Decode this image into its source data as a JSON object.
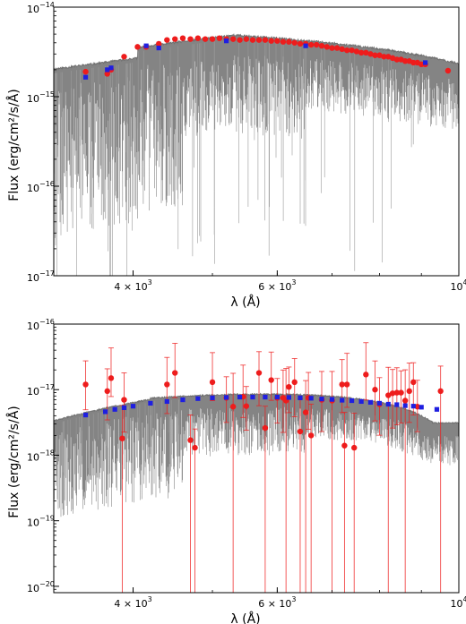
{
  "chart_data": [
    {
      "type": "line",
      "xlabel": "λ (Å)",
      "ylabel": "Flux (erg/cm²/s/Å)",
      "xscale": "log",
      "yscale": "log",
      "xlim": [
        3200,
        10000
      ],
      "ylim": [
        1e-17,
        1e-14
      ],
      "xticks": [
        {
          "value": 4000,
          "label": "4 × 10",
          "exp": "3"
        },
        {
          "value": 6000,
          "label": "6 × 10",
          "exp": "3"
        },
        {
          "value": 10000,
          "label": "10",
          "exp": "4"
        }
      ],
      "yticks": [
        {
          "value": 1e-17,
          "label": "10",
          "exp": "−17"
        },
        {
          "value": 1e-16,
          "label": "10",
          "exp": "−16"
        },
        {
          "value": 1e-15,
          "label": "10",
          "exp": "−15"
        },
        {
          "value": 1e-14,
          "label": "10",
          "exp": "−14"
        }
      ],
      "model_spectrum": {
        "color": "#6e6e6e"
      },
      "series": [
        {
          "color": "#ee1c1c",
          "marker": "circle",
          "x": [
            3500,
            3720,
            3760,
            3900,
            4050,
            4150,
            4300,
            4400,
            4500,
            4600,
            4700,
            4800,
            4900,
            5000,
            5100,
            5200,
            5300,
            5400,
            5500,
            5600,
            5700,
            5800,
            5900,
            6000,
            6100,
            6200,
            6300,
            6400,
            6500,
            6600,
            6700,
            6800,
            6900,
            7000,
            7100,
            7200,
            7300,
            7400,
            7500,
            7600,
            7700,
            7800,
            7900,
            8000,
            8100,
            8200,
            8300,
            8400,
            8500,
            8600,
            8700,
            8800,
            8900,
            9000,
            9100,
            9700
          ],
          "y": [
            1.9e-15,
            1.8e-15,
            2e-15,
            2.8e-15,
            3.6e-15,
            3.6e-15,
            3.9e-15,
            4.3e-15,
            4.4e-15,
            4.5e-15,
            4.4e-15,
            4.5e-15,
            4.4e-15,
            4.4e-15,
            4.5e-15,
            4.4e-15,
            4.4e-15,
            4.3e-15,
            4.4e-15,
            4.3e-15,
            4.3e-15,
            4.3e-15,
            4.2e-15,
            4.2e-15,
            4.1e-15,
            4.1e-15,
            4e-15,
            3.9e-15,
            3.9e-15,
            3.8e-15,
            3.8e-15,
            3.7e-15,
            3.6e-15,
            3.5e-15,
            3.5e-15,
            3.4e-15,
            3.3e-15,
            3.3e-15,
            3.2e-15,
            3.1e-15,
            3.1e-15,
            3e-15,
            2.9e-15,
            2.9e-15,
            2.8e-15,
            2.8e-15,
            2.7e-15,
            2.6e-15,
            2.6e-15,
            2.5e-15,
            2.5e-15,
            2.4e-15,
            2.4e-15,
            2.3e-15,
            2.3e-15,
            1.95e-15
          ]
        },
        {
          "color": "#1f1fe0",
          "marker": "square",
          "x": [
            3500,
            3720,
            3760,
            4150,
            4300,
            5200,
            6500,
            9100
          ],
          "y": [
            1.65e-15,
            2e-15,
            2.1e-15,
            3.7e-15,
            3.5e-15,
            4.2e-15,
            3.7e-15,
            2.4e-15
          ]
        }
      ]
    },
    {
      "type": "line",
      "xlabel": "λ (Å)",
      "ylabel": "Flux (erg/cm²/s/Å)",
      "xscale": "log",
      "yscale": "log",
      "xlim": [
        3200,
        10000
      ],
      "ylim": [
        8e-21,
        1e-16
      ],
      "xticks": [
        {
          "value": 4000,
          "label": "4 × 10",
          "exp": "3"
        },
        {
          "value": 6000,
          "label": "6 × 10",
          "exp": "3"
        },
        {
          "value": 10000,
          "label": "10",
          "exp": "4"
        }
      ],
      "yticks": [
        {
          "value": 1e-20,
          "label": "10",
          "exp": "−20"
        },
        {
          "value": 1e-19,
          "label": "10",
          "exp": "−19"
        },
        {
          "value": 1e-18,
          "label": "10",
          "exp": "−18"
        },
        {
          "value": 1e-17,
          "label": "10",
          "exp": "−17"
        },
        {
          "value": 1e-16,
          "label": "10",
          "exp": "−16"
        }
      ],
      "model_spectrum": {
        "color": "#6e6e6e"
      },
      "series": [
        {
          "color": "#ee1c1c",
          "marker": "circle",
          "errorbars": true,
          "x": [
            3500,
            3720,
            3760,
            3880,
            3900,
            4400,
            4500,
            4700,
            4760,
            5000,
            5200,
            5300,
            5450,
            5500,
            5700,
            5800,
            5900,
            6000,
            6100,
            6150,
            6200,
            6300,
            6400,
            6500,
            6550,
            6600,
            6800,
            7000,
            7200,
            7250,
            7300,
            7450,
            7700,
            7900,
            8000,
            8200,
            8300,
            8400,
            8500,
            8600,
            8700,
            8800,
            8900,
            9500
          ],
          "y": [
            1.2e-17,
            9.5e-18,
            1.5e-17,
            1.8e-18,
            7e-18,
            1.2e-17,
            1.8e-17,
            1.7e-18,
            1.3e-18,
            1.3e-17,
            7.5e-18,
            5.5e-18,
            7.8e-18,
            5.6e-18,
            1.8e-17,
            2.6e-18,
            1.4e-17,
            7.5e-18,
            7.5e-18,
            6.8e-18,
            1.1e-17,
            1.3e-17,
            2.3e-18,
            4.5e-18,
            7.5e-18,
            2e-18,
            7e-18,
            6.8e-18,
            1.2e-17,
            1.4e-18,
            1.2e-17,
            1.3e-18,
            1.7e-17,
            1e-17,
            6e-18,
            8.2e-18,
            8.8e-18,
            9e-18,
            9e-18,
            6.8e-18,
            9.5e-18,
            1.3e-17,
            5.5e-18,
            9.5e-18
          ]
        },
        {
          "color": "#1f1fe0",
          "marker": "square",
          "x": [
            3500,
            3700,
            3800,
            3900,
            4000,
            4200,
            4400,
            4600,
            4800,
            5000,
            5200,
            5400,
            5600,
            5800,
            6000,
            6200,
            6400,
            6600,
            6800,
            7000,
            7200,
            7400,
            7600,
            7800,
            8000,
            8200,
            8400,
            8600,
            8800,
            9000,
            9400
          ],
          "y": [
            4.1e-18,
            4.6e-18,
            5e-18,
            5.3e-18,
            5.6e-18,
            6.2e-18,
            6.6e-18,
            7e-18,
            7.3e-18,
            7.5e-18,
            7.6e-18,
            7.7e-18,
            7.7e-18,
            7.7e-18,
            7.7e-18,
            7.6e-18,
            7.5e-18,
            7.4e-18,
            7.2e-18,
            7.1e-18,
            6.9e-18,
            6.8e-18,
            6.6e-18,
            6.4e-18,
            6.2e-18,
            6e-18,
            5.9e-18,
            5.7e-18,
            5.6e-18,
            5.4e-18,
            5e-18
          ]
        }
      ]
    }
  ]
}
